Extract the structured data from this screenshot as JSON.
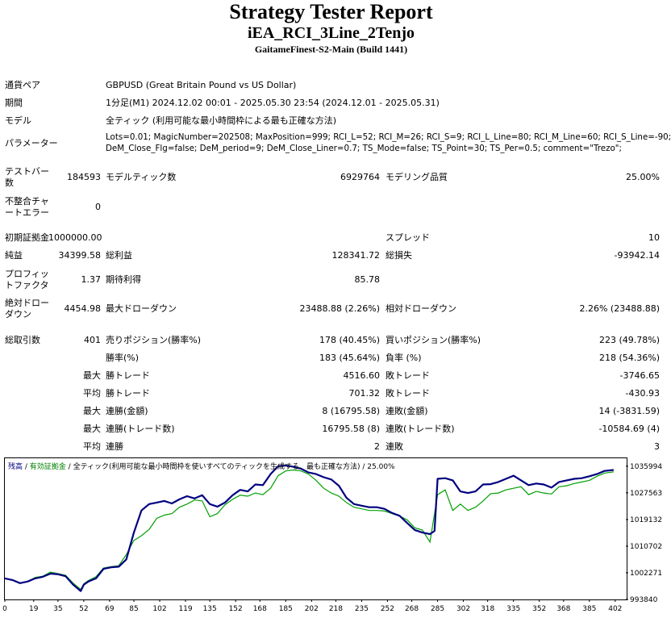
{
  "header": {
    "title": "Strategy Tester Report",
    "ea_name": "iEA_RCI_3Line_2Tenjo",
    "server": "GaitameFinest-S2-Main (Build 1441)"
  },
  "settings": {
    "symbol_label": "通貨ペア",
    "symbol_value": "GBPUSD (Great Britain Pound vs US Dollar)",
    "period_label": "期間",
    "period_value": "1分足(M1) 2024.12.02 00:01 - 2025.05.30 23:54 (2024.12.01 - 2025.05.31)",
    "model_label": "モデル",
    "model_value": "全ティック (利用可能な最小時間枠による最も正確な方法)",
    "params_label": "パラメーター",
    "params_line1": "Lots=0.01; MagicNumber=202508; MaxPosition=999; RCI_L=52; RCI_M=26; RCI_S=9; RCI_L_Line=80; RCI_M_Line=60; RCI_S_Line=-90;",
    "params_line2": "DeM_Close_Flg=false; DeM_period=9; DeM_Close_Liner=0.7; TS_Mode=false; TS_Point=30; TS_Per=0.5; comment=\"Trezo\";"
  },
  "quality": {
    "bars_label_1": "テストバー",
    "bars_label_2": "数",
    "bars_value": "184593",
    "ticks_label": "モデルティック数",
    "ticks_value": "6929764",
    "quality_label": "モデリング品質",
    "quality_value": "25.00%",
    "mismatch_label_1": "不整合チャ",
    "mismatch_label_2": "ートエラー",
    "mismatch_value": "0"
  },
  "results": {
    "deposit_label": "初期証拠金",
    "deposit_value": "1000000.00",
    "spread_label": "スプレッド",
    "spread_value": "10",
    "net_label": "純益",
    "net_value": "34399.58",
    "gross_profit_label": "総利益",
    "gross_profit_value": "128341.72",
    "gross_loss_label": "総損失",
    "gross_loss_value": "-93942.14",
    "pf_label_1": "プロフィッ",
    "pf_label_2": "トファクタ",
    "pf_value": "1.37",
    "expected_label": "期待利得",
    "expected_value": "85.78",
    "abs_dd_label_1": "絶対ドロー",
    "abs_dd_label_2": "ダウン",
    "abs_dd_value": "4454.98",
    "max_dd_label": "最大ドローダウン",
    "max_dd_value": "23488.88 (2.26%)",
    "rel_dd_label": "相対ドローダウン",
    "rel_dd_value": "2.26% (23488.88)"
  },
  "trades": {
    "total_label": "総取引数",
    "total_value": "401",
    "short_label": "売りポジション(勝率%)",
    "short_value": "178 (40.45%)",
    "long_label": "買いポジション(勝率%)",
    "long_value": "223 (49.78%)",
    "win_pct_label": "勝率(%)",
    "win_pct_value": "183 (45.64%)",
    "loss_pct_label": "負率 (%)",
    "loss_pct_value": "218 (54.36%)",
    "max_word": "最大",
    "avg_word": "平均",
    "largest_win_label": "勝トレード",
    "largest_win_value": "4516.60",
    "largest_loss_label": "敗トレード",
    "largest_loss_value": "-3746.65",
    "avg_win_label": "勝トレード",
    "avg_win_value": "701.32",
    "avg_loss_label": "敗トレード",
    "avg_loss_value": "-430.93",
    "max_consec_win_amt_label": "連勝(金額)",
    "max_consec_win_amt_value": "8 (16795.58)",
    "max_consec_loss_amt_label": "連敗(金額)",
    "max_consec_loss_amt_value": "14 (-3831.59)",
    "max_consec_win_cnt_label": "連勝(トレード数)",
    "max_consec_win_cnt_value": "16795.58 (8)",
    "max_consec_loss_cnt_label": "連敗(トレード数)",
    "max_consec_loss_cnt_value": "-10584.69 (4)",
    "avg_consec_win_label": "連勝",
    "avg_consec_win_value": "2",
    "avg_consec_loss_label": "連敗",
    "avg_consec_loss_value": "3"
  },
  "chart_legend": {
    "balance": "残高",
    "sep1": " / ",
    "equity": "有効証拠金",
    "sep2": " / ",
    "model_desc": "全ティック(利用可能な最小時間枠を使いすべてのティックを生成する、最も正確な方法)",
    "quality": " / 25.00%"
  },
  "colors": {
    "balance_line": "#000080",
    "equity_line": "#00a000",
    "legend_balance": "#000080",
    "legend_equity": "#008000"
  },
  "chart_data": {
    "type": "line",
    "title": "",
    "xlabel": "",
    "ylabel": "",
    "x_ticks": [
      "0",
      "19",
      "35",
      "52",
      "69",
      "85",
      "102",
      "119",
      "135",
      "152",
      "168",
      "185",
      "202",
      "218",
      "235",
      "252",
      "268",
      "285",
      "302",
      "318",
      "335",
      "352",
      "368",
      "385",
      "402"
    ],
    "y_ticks": [
      "1035994",
      "1027563",
      "1019132",
      "1010702",
      "1002271",
      "993840"
    ],
    "ylim": [
      993840,
      1038500
    ],
    "xlim": [
      0,
      409
    ],
    "grid": false,
    "series": [
      {
        "name": "残高",
        "x": [
          0,
          5,
          10,
          15,
          20,
          25,
          30,
          35,
          40,
          45,
          50,
          52,
          55,
          60,
          65,
          70,
          75,
          80,
          85,
          90,
          95,
          100,
          105,
          110,
          115,
          120,
          125,
          130,
          135,
          140,
          145,
          150,
          155,
          160,
          165,
          170,
          175,
          180,
          185,
          190,
          195,
          200,
          205,
          210,
          215,
          220,
          225,
          230,
          235,
          240,
          245,
          250,
          255,
          260,
          265,
          270,
          275,
          280,
          283,
          285,
          290,
          295,
          300,
          305,
          310,
          315,
          320,
          325,
          330,
          335,
          340,
          345,
          350,
          355,
          360,
          365,
          370,
          375,
          380,
          385,
          390,
          395,
          401
        ],
        "values": [
          1000500,
          1000000,
          999000,
          999500,
          1000500,
          1001000,
          1002000,
          1001800,
          1001200,
          998500,
          996500,
          998500,
          999500,
          1000500,
          1003500,
          1004000,
          1004200,
          1006500,
          1015000,
          1022000,
          1024000,
          1024500,
          1025000,
          1024200,
          1025500,
          1026500,
          1025800,
          1026800,
          1024000,
          1023200,
          1024500,
          1026800,
          1028500,
          1028000,
          1030200,
          1030000,
          1033500,
          1036000,
          1036200,
          1035800,
          1035200,
          1034000,
          1033500,
          1032500,
          1031800,
          1029800,
          1026000,
          1024000,
          1023500,
          1023000,
          1023000,
          1022500,
          1021200,
          1020300,
          1018000,
          1015800,
          1015000,
          1014500,
          1015500,
          1032000,
          1032200,
          1031500,
          1028000,
          1027500,
          1028000,
          1030200,
          1030300,
          1031000,
          1032000,
          1033000,
          1031500,
          1030000,
          1030500,
          1030200,
          1029200,
          1031000,
          1031500,
          1032000,
          1032200,
          1032800,
          1033500,
          1034500,
          1034800
        ]
      },
      {
        "name": "有効証拠金",
        "x": [
          0,
          5,
          10,
          15,
          20,
          25,
          30,
          35,
          40,
          45,
          50,
          52,
          55,
          60,
          65,
          70,
          75,
          80,
          85,
          90,
          95,
          100,
          105,
          110,
          115,
          120,
          125,
          130,
          135,
          140,
          145,
          150,
          155,
          160,
          165,
          170,
          175,
          180,
          185,
          190,
          195,
          200,
          205,
          210,
          215,
          220,
          225,
          230,
          235,
          240,
          245,
          250,
          255,
          260,
          265,
          270,
          275,
          280,
          283,
          285,
          290,
          295,
          300,
          305,
          310,
          315,
          320,
          325,
          330,
          335,
          340,
          345,
          350,
          355,
          360,
          365,
          370,
          375,
          380,
          385,
          390,
          395,
          401
        ],
        "values": [
          1000500,
          1000000,
          999000,
          999500,
          1000800,
          1001200,
          1002500,
          1002000,
          1001500,
          999000,
          997000,
          998800,
          999800,
          1001000,
          1003800,
          1004200,
          1004500,
          1008000,
          1012500,
          1014000,
          1016000,
          1019500,
          1020500,
          1021000,
          1023000,
          1024000,
          1025300,
          1025000,
          1020000,
          1021000,
          1023800,
          1025500,
          1026800,
          1026500,
          1027500,
          1027000,
          1029000,
          1033000,
          1034500,
          1034800,
          1034500,
          1033500,
          1031500,
          1029000,
          1027500,
          1026500,
          1024500,
          1023000,
          1022500,
          1022000,
          1022000,
          1021800,
          1021000,
          1020200,
          1019000,
          1016500,
          1015800,
          1012000,
          1021000,
          1027000,
          1028500,
          1022000,
          1024000,
          1022000,
          1023000,
          1025000,
          1027300,
          1027500,
          1028500,
          1029000,
          1029500,
          1027000,
          1028000,
          1027500,
          1027200,
          1029500,
          1029800,
          1030500,
          1031000,
          1031500,
          1032800,
          1033800,
          1034200
        ]
      }
    ]
  }
}
